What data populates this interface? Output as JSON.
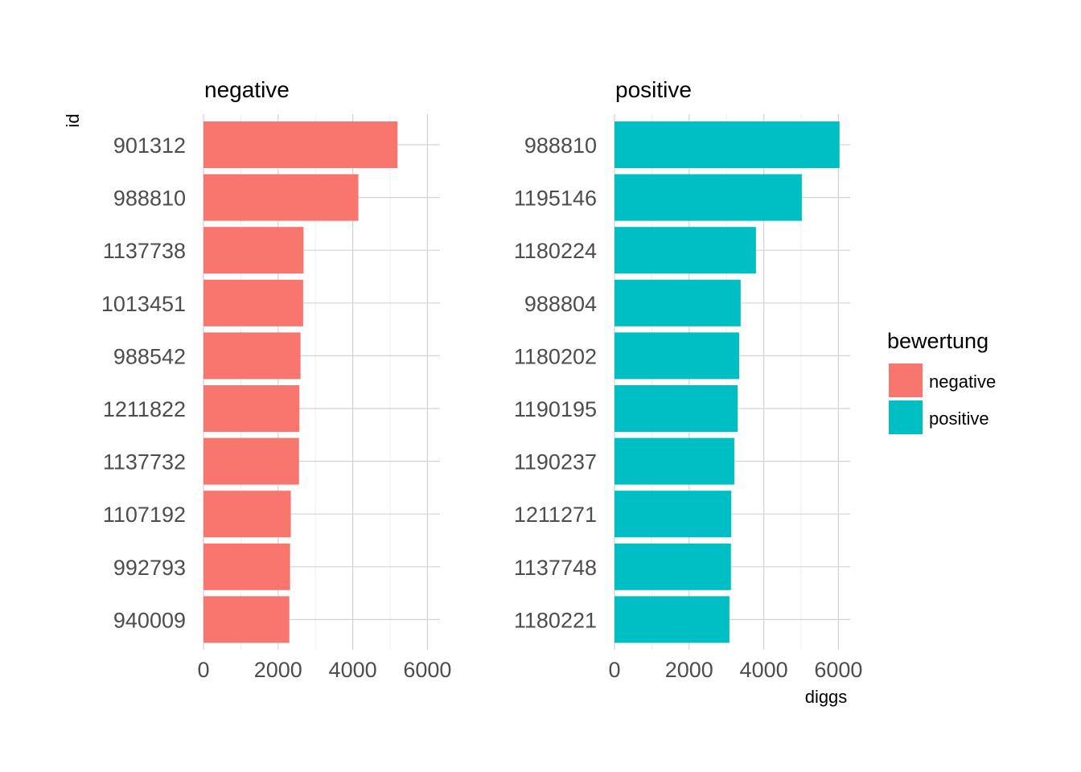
{
  "chart_data": {
    "type": "bar",
    "orientation": "horizontal",
    "facets": [
      {
        "name": "negative",
        "color": "#F8766D",
        "categories": [
          "901312",
          "988810",
          "1137738",
          "1013451",
          "988542",
          "1211822",
          "1137732",
          "1107192",
          "992793",
          "940009"
        ],
        "values": [
          5200,
          4150,
          2680,
          2670,
          2600,
          2570,
          2560,
          2340,
          2320,
          2300
        ]
      },
      {
        "name": "positive",
        "color": "#00BFC4",
        "categories": [
          "988810",
          "1195146",
          "1180224",
          "988804",
          "1180202",
          "1190195",
          "1190237",
          "1211271",
          "1137748",
          "1180221"
        ],
        "values": [
          6030,
          5020,
          3790,
          3380,
          3340,
          3300,
          3210,
          3130,
          3120,
          3080
        ]
      }
    ],
    "xlabel": "diggs",
    "ylabel": "id",
    "xlim": [
      0,
      6300
    ],
    "x_ticks": [
      "0",
      "2000",
      "4000",
      "6000"
    ],
    "grid": true,
    "legend": {
      "title": "bewertung",
      "position": "right",
      "entries": [
        {
          "label": "negative",
          "color": "#F8766D"
        },
        {
          "label": "positive",
          "color": "#00BFC4"
        }
      ]
    }
  }
}
